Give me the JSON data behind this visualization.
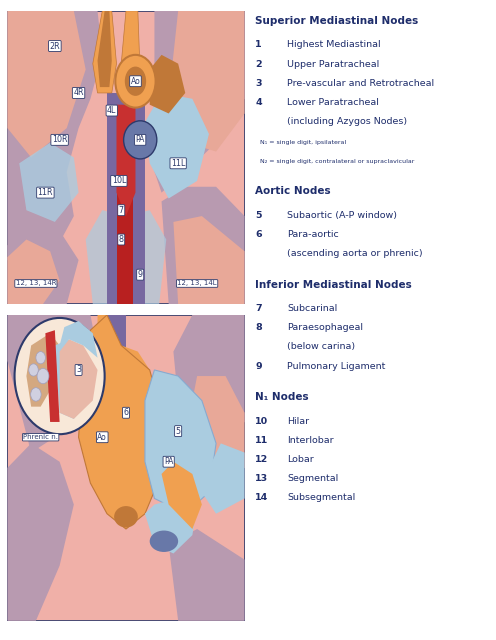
{
  "bg_color": "#ffffff",
  "text_color": "#1e2d6b",
  "sections": [
    {
      "heading": "Superior Mediastinal Nodes",
      "items": [
        {
          "num": "1",
          "text": "Highest Mediastinal"
        },
        {
          "num": "2",
          "text": "Upper Paratracheal"
        },
        {
          "num": "3",
          "text": "Pre-vascular and Retrotracheal"
        },
        {
          "num": "4",
          "text": "Lower Paratracheal\n(including Azygos Nodes)"
        }
      ],
      "footnotes": [
        "N₁ = single digit, ipsilateral",
        "N₂ = single digit, contralateral or supraclavicular"
      ]
    },
    {
      "heading": "Aortic Nodes",
      "items": [
        {
          "num": "5",
          "text": "Subaortic (A-P window)"
        },
        {
          "num": "6",
          "text": "Para-aortic\n(ascending aorta or phrenic)"
        }
      ],
      "footnotes": []
    },
    {
      "heading": "Inferior Mediastinal Nodes",
      "items": [
        {
          "num": "7",
          "text": "Subcarinal"
        },
        {
          "num": "8",
          "text": "Paraesophageal\n(below carina)"
        },
        {
          "num": "9",
          "text": "Pulmonary Ligament"
        }
      ],
      "footnotes": []
    },
    {
      "heading": "N₁ Nodes",
      "items": [
        {
          "num": "10",
          "text": "Hilar"
        },
        {
          "num": "11",
          "text": "Interlobar"
        },
        {
          "num": "12",
          "text": "Lobar"
        },
        {
          "num": "13",
          "text": "Segmental"
        },
        {
          "num": "14",
          "text": "Subsegmental"
        }
      ],
      "footnotes": []
    }
  ],
  "colors": {
    "pink_bg": "#f0b0a8",
    "pink_lung": "#e8a898",
    "pink_light": "#f5d0c8",
    "mauve": "#b89ab0",
    "purple_dark": "#7868a0",
    "purple_med": "#9888b8",
    "orange": "#f0a050",
    "dark_orange": "#c07838",
    "blue_light": "#aacce0",
    "blue_mid": "#88aad0",
    "blue_dark": "#5888b8",
    "gray_blue": "#6878a8",
    "gray_slate": "#8890b0",
    "red_dark": "#b82020",
    "red_bright": "#c83030",
    "white": "#ffffff",
    "dark_navy": "#2d3a6b",
    "cream": "#f8e8d8",
    "tan": "#d4a880",
    "dark_gray": "#607080"
  }
}
